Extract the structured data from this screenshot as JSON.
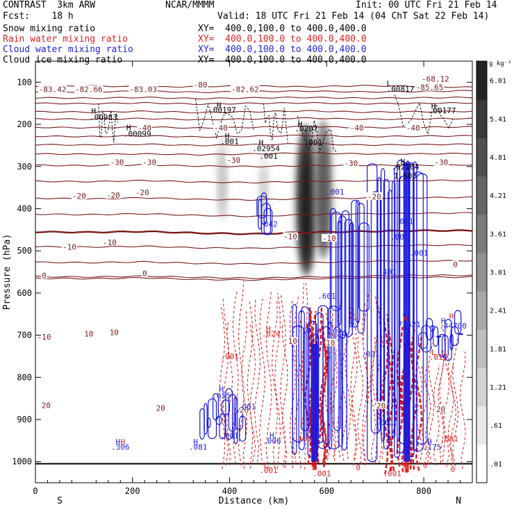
{
  "header": {
    "left_title": "CONTRAST  3km ARW",
    "center_title": "NCAR/MMMM",
    "init": "Init: 00 UTC Fri 21 Feb 14",
    "fcst": "Fcst:    18 h",
    "valid": "Valid: 18 UTC Fri 21 Feb 14 (04 ChT Sat 22 Feb 14)",
    "fields": [
      {
        "label": "Snow mixing ratio",
        "xy": "XY=  400.0,100.0 to 400.0,400.0",
        "color": "#000000"
      },
      {
        "label": "Rain water mixing ratio",
        "xy": "XY=  400.0,100.0 to 400.0,400.0",
        "color": "#dd2222"
      },
      {
        "label": "Cloud water mixing ratio",
        "xy": "XY=  400.0,100.0 to 400.0,400.0",
        "color": "#2222dd"
      },
      {
        "label": "Cloud ice mixing ratio",
        "xy": "XY=  400.0,100.0 to 400.0,400.0",
        "color": "#000000"
      }
    ]
  },
  "chart_data": {
    "type": "cross-section",
    "xlabel": "Distance (km)",
    "ylabel": "Pressure (hPa)",
    "xlim": [
      0,
      900
    ],
    "ylim": [
      1050,
      50
    ],
    "x_ticks": [
      0,
      200,
      400,
      600,
      800
    ],
    "x_tick_labels": [
      "0",
      "200",
      "400",
      "600",
      "800"
    ],
    "y_ticks": [
      100,
      200,
      300,
      400,
      500,
      600,
      700,
      800,
      900,
      1000
    ],
    "y_tick_labels": [
      "100",
      "200",
      "300",
      "400",
      "500",
      "600",
      "700",
      "800",
      "900",
      "1000"
    ],
    "x_end_labels": {
      "left": "S",
      "right": "N"
    },
    "colorbar": {
      "unit": "g kg⁻¹",
      "values": [
        0.01,
        0.61,
        1.21,
        1.81,
        2.41,
        3.01,
        3.61,
        4.21,
        4.81,
        5.41,
        6.01
      ],
      "labels": [
        ".01",
        ".61",
        "1.21",
        "1.81",
        "2.41",
        "3.01",
        "3.61",
        "4.21",
        "4.81",
        "5.41",
        "6.01"
      ]
    },
    "temperature_contours_C": [
      {
        "level": -80,
        "p": [
          110,
          108,
          112,
          110,
          109,
          111,
          108,
          110,
          112
        ]
      },
      {
        "level": -70,
        "p": [
          122,
          123,
          121,
          124,
          122,
          121,
          123,
          122,
          120
        ]
      },
      {
        "level": -60,
        "p": [
          137,
          138,
          136,
          139,
          137,
          136,
          138,
          137,
          136
        ]
      },
      {
        "level": -55,
        "p": [
          150,
          151,
          149,
          152,
          150,
          149,
          151,
          150,
          149
        ]
      },
      {
        "level": -50,
        "p": [
          170,
          171,
          169,
          172,
          170,
          168,
          171,
          170,
          169
        ]
      },
      {
        "level": -45,
        "p": [
          187,
          188,
          186,
          189,
          187,
          185,
          188,
          187,
          186
        ]
      },
      {
        "level": -40,
        "p": [
          207,
          208,
          206,
          209,
          207,
          205,
          208,
          207,
          206
        ]
      },
      {
        "level": -35,
        "p": [
          228,
          229,
          227,
          230,
          228,
          226,
          229,
          228,
          227
        ]
      },
      {
        "level": -30,
        "p": [
          248,
          249,
          247,
          250,
          248,
          246,
          249,
          248,
          247
        ]
      },
      {
        "level": -25,
        "p": [
          270,
          271,
          270,
          272,
          270,
          268,
          270,
          270,
          269
        ]
      },
      {
        "level": -20,
        "p": [
          297,
          298,
          296,
          299,
          300,
          298,
          297,
          297,
          296
        ]
      },
      {
        "level": -15,
        "p": [
          335,
          336,
          333,
          337,
          338,
          335,
          334,
          333,
          333
        ]
      },
      {
        "level": -10,
        "p": [
          375,
          377,
          374,
          378,
          379,
          376,
          375,
          374,
          373
        ]
      },
      {
        "level": -5,
        "p": [
          413,
          414,
          412,
          416,
          418,
          414,
          412,
          411,
          410
        ]
      },
      {
        "level": 0,
        "p": [
          455,
          456,
          454,
          458,
          460,
          456,
          454,
          452,
          452
        ]
      },
      {
        "level": 5,
        "p": [
          490,
          491,
          489,
          493,
          494,
          491,
          489,
          487,
          486
        ]
      },
      {
        "level": 10,
        "p": [
          527,
          528,
          526,
          530,
          531,
          528,
          525,
          524,
          523
        ]
      },
      {
        "level": 15,
        "p": [
          561,
          562,
          560,
          563,
          565,
          562,
          560,
          558,
          558
        ]
      },
      {
        "level": 20,
        "p": [
          565,
          566,
          564,
          568,
          569,
          566,
          564,
          563,
          562
        ]
      }
    ],
    "temperature_labels": [
      {
        "text": "-83.42",
        "x": 35,
        "p": 117
      },
      {
        "text": "-82.66",
        "x": 110,
        "p": 117
      },
      {
        "text": "-83.03",
        "x": 222,
        "p": 117
      },
      {
        "text": "-80",
        "x": 340,
        "p": 106
      },
      {
        "text": "-82.62",
        "x": 432,
        "p": 117
      },
      {
        "text": "-68.12",
        "x": 824,
        "p": 92
      },
      {
        "text": "-85.65",
        "x": 812,
        "p": 112
      },
      {
        "text": "-40",
        "x": 225,
        "p": 208
      },
      {
        "text": "-40",
        "x": 382,
        "p": 208
      },
      {
        "text": "-40",
        "x": 662,
        "p": 208
      },
      {
        "text": "-40",
        "x": 778,
        "p": 208
      },
      {
        "text": "-30",
        "x": 168,
        "p": 290
      },
      {
        "text": "-30",
        "x": 235,
        "p": 290
      },
      {
        "text": "-30",
        "x": 408,
        "p": 285
      },
      {
        "text": "-30",
        "x": 650,
        "p": 292
      },
      {
        "text": "-30",
        "x": 836,
        "p": 290
      },
      {
        "text": "-20",
        "x": 90,
        "p": 370
      },
      {
        "text": "-20",
        "x": 160,
        "p": 368
      },
      {
        "text": "-20",
        "x": 220,
        "p": 361
      },
      {
        "text": "-20",
        "x": 698,
        "p": 371
      },
      {
        "text": "-10",
        "x": 70,
        "p": 491
      },
      {
        "text": "-10",
        "x": 153,
        "p": 480
      },
      {
        "text": "-10",
        "x": 525,
        "p": 466
      },
      {
        "text": "-10",
        "x": 605,
        "p": 470
      },
      {
        "text": "0",
        "x": 18,
        "p": 558
      },
      {
        "text": "0",
        "x": 225,
        "p": 553
      },
      {
        "text": "0",
        "x": 865,
        "p": 532
      },
      {
        "text": "-10",
        "x": 18,
        "p": 704
      },
      {
        "text": "10",
        "x": 110,
        "p": 697
      },
      {
        "text": "10",
        "x": 162,
        "p": 693
      },
      {
        "text": "10",
        "x": 530,
        "p": 714
      },
      {
        "text": "10",
        "x": 608,
        "p": 718
      },
      {
        "text": "20",
        "x": 22,
        "p": 866
      },
      {
        "text": "20",
        "x": 258,
        "p": 873
      },
      {
        "text": "20",
        "x": 430,
        "p": 877
      },
      {
        "text": "20",
        "x": 712,
        "p": 867
      },
      {
        "text": "20",
        "x": 835,
        "p": 875
      }
    ],
    "extrema_labels": [
      {
        "text": "H",
        "x": 120,
        "p": 168,
        "color": "#000000"
      },
      {
        "text": ".00983",
        "x": 140,
        "p": 183,
        "color": "#000000"
      },
      {
        "text": "H",
        "x": 192,
        "p": 207,
        "color": "#000000"
      },
      {
        "text": ".00099",
        "x": 210,
        "p": 222,
        "color": "#000000"
      },
      {
        "text": "H",
        "x": 378,
        "p": 155,
        "color": "#000000"
      },
      {
        "text": ".00197",
        "x": 385,
        "p": 165,
        "color": "#000000"
      },
      {
        "text": "H",
        "x": 395,
        "p": 227,
        "color": "#000000"
      },
      {
        "text": ".001",
        "x": 400,
        "p": 240,
        "color": "#000000"
      },
      {
        "text": "H",
        "x": 465,
        "p": 243,
        "color": "#000000"
      },
      {
        "text": ".02954",
        "x": 475,
        "p": 257,
        "color": "#000000"
      },
      {
        "text": "H",
        "x": 545,
        "p": 200,
        "color": "#000000"
      },
      {
        "text": ".0207",
        "x": 558,
        "p": 210,
        "color": "#000000"
      },
      {
        "text": ".001",
        "x": 572,
        "p": 243,
        "color": "#000000"
      },
      {
        "text": ".001",
        "x": 480,
        "p": 275,
        "color": "#000000"
      },
      {
        "text": "L",
        "x": 728,
        "p": 103,
        "color": "#000000"
      },
      {
        "text": ".00817",
        "x": 752,
        "p": 116,
        "color": "#000000"
      },
      {
        "text": "H",
        "x": 820,
        "p": 156,
        "color": "#000000"
      },
      {
        "text": ".00177",
        "x": 838,
        "p": 167,
        "color": "#000000"
      },
      {
        "text": "H",
        "x": 757,
        "p": 288,
        "color": "#000000"
      },
      {
        "text": ".02104",
        "x": 762,
        "p": 300,
        "color": "#000000"
      },
      {
        "text": "1.503",
        "x": 762,
        "p": 322,
        "color": "#000000"
      },
      {
        "text": ".001",
        "x": 617,
        "p": 360,
        "color": "#2222dd"
      },
      {
        "text": ".042",
        "x": 480,
        "p": 436,
        "color": "#2222dd"
      },
      {
        "text": ".001",
        "x": 760,
        "p": 430,
        "color": "#2222dd"
      },
      {
        "text": ".001",
        "x": 750,
        "p": 467,
        "color": "#2222dd"
      },
      {
        "text": ".001",
        "x": 790,
        "p": 505,
        "color": "#2222dd"
      },
      {
        "text": ".401",
        "x": 725,
        "p": 550,
        "color": "#2222dd"
      },
      {
        "text": ".601",
        "x": 600,
        "p": 607,
        "color": "#2222dd"
      },
      {
        "text": "H",
        "x": 762,
        "p": 660,
        "color": "#dd2222"
      },
      {
        "text": "7.621",
        "x": 770,
        "p": 674,
        "color": "#2222dd"
      },
      {
        "text": "H",
        "x": 857,
        "p": 655,
        "color": "#dd2222"
      },
      {
        "text": "H",
        "x": 840,
        "p": 665,
        "color": "#2222dd"
      },
      {
        "text": ".44700",
        "x": 860,
        "p": 678,
        "color": "#2222dd"
      },
      {
        "text": "H",
        "x": 480,
        "p": 684,
        "color": "#dd2222"
      },
      {
        "text": ".024",
        "x": 485,
        "p": 697,
        "color": "#dd2222"
      },
      {
        "text": ".001",
        "x": 400,
        "p": 750,
        "color": "#dd2222"
      },
      {
        "text": ".001",
        "x": 690,
        "p": 744,
        "color": "#2222dd"
      },
      {
        "text": "L",
        "x": 820,
        "p": 740,
        "color": "#dd2222"
      },
      {
        "text": ".017",
        "x": 830,
        "p": 752,
        "color": "#dd2222"
      },
      {
        "text": "H",
        "x": 383,
        "p": 828,
        "color": "#2222dd"
      },
      {
        "text": ".655",
        "x": 383,
        "p": 843,
        "color": "#2222dd"
      },
      {
        "text": ".001",
        "x": 435,
        "p": 870,
        "color": "#2222dd"
      },
      {
        "text": "H",
        "x": 170,
        "p": 953,
        "color": "#2222dd"
      },
      {
        "text": "H",
        "x": 180,
        "p": 953,
        "color": "#dd2222"
      },
      {
        "text": ".306",
        "x": 175,
        "p": 965,
        "color": "#2222dd"
      },
      {
        "text": "H",
        "x": 330,
        "p": 953,
        "color": "#2222dd"
      },
      {
        "text": ".081",
        "x": 335,
        "p": 965,
        "color": "#2222dd"
      },
      {
        "text": ".001",
        "x": 400,
        "p": 938,
        "color": "#2222dd"
      },
      {
        "text": "H",
        "x": 487,
        "p": 937,
        "color": "#2222dd"
      },
      {
        "text": ".006",
        "x": 487,
        "p": 950,
        "color": "#2222dd"
      },
      {
        "text": ".401",
        "x": 550,
        "p": 945,
        "color": "#dd2222"
      },
      {
        "text": ".001",
        "x": 720,
        "p": 907,
        "color": "#2222dd"
      },
      {
        "text": "H",
        "x": 812,
        "p": 953,
        "color": "#2222dd"
      },
      {
        "text": ".175",
        "x": 817,
        "p": 965,
        "color": "#2222dd"
      },
      {
        "text": ".001",
        "x": 852,
        "p": 945,
        "color": "#dd2222"
      },
      {
        "text": "L",
        "x": 475,
        "p": 1008,
        "color": "#dd2222"
      },
      {
        "text": ".001",
        "x": 480,
        "p": 1020,
        "color": "#dd2222"
      },
      {
        "text": ".001",
        "x": 590,
        "p": 1028,
        "color": "#dd2222"
      },
      {
        "text": ".001",
        "x": 735,
        "p": 1028,
        "color": "#dd2222"
      },
      {
        "text": "0",
        "x": 665,
        "p": 1014,
        "color": "#dd2222"
      },
      {
        "text": "0",
        "x": 803,
        "p": 1008,
        "color": "#dd2222"
      },
      {
        "text": "0",
        "x": 860,
        "p": 1018,
        "color": "#dd2222"
      }
    ],
    "snow_shading_columns": [
      {
        "x": 385,
        "p_top": 220,
        "p_bottom": 430,
        "max_gkg": 0.9
      },
      {
        "x": 558,
        "p_top": 200,
        "p_bottom": 560,
        "max_gkg": 6.0
      },
      {
        "x": 593,
        "p_top": 190,
        "p_bottom": 520,
        "max_gkg": 4.2
      },
      {
        "x": 470,
        "p_top": 260,
        "p_bottom": 440,
        "max_gkg": 0.6
      }
    ],
    "cloud_water_columns": [
      {
        "x_min": 340,
        "x_max": 430,
        "p_top": 820,
        "p_bottom": 960
      },
      {
        "x_min": 460,
        "x_max": 490,
        "p_top": 360,
        "p_bottom": 480
      },
      {
        "x_min": 530,
        "x_max": 640,
        "p_top": 620,
        "p_bottom": 1000
      },
      {
        "x_min": 610,
        "x_max": 680,
        "p_top": 380,
        "p_bottom": 720
      },
      {
        "x_min": 690,
        "x_max": 800,
        "p_top": 280,
        "p_bottom": 1000
      },
      {
        "x_min": 795,
        "x_max": 880,
        "p_top": 640,
        "p_bottom": 760
      }
    ],
    "rain_columns": [
      {
        "x_min": 380,
        "x_max": 560,
        "p_top": 560,
        "p_bottom": 1020
      },
      {
        "x_min": 560,
        "x_max": 600,
        "p_top": 590,
        "p_bottom": 1020
      },
      {
        "x_min": 600,
        "x_max": 720,
        "p_top": 600,
        "p_bottom": 1010
      },
      {
        "x_min": 720,
        "x_max": 790,
        "p_top": 640,
        "p_bottom": 1030
      },
      {
        "x_min": 790,
        "x_max": 880,
        "p_top": 660,
        "p_bottom": 1020
      }
    ]
  }
}
